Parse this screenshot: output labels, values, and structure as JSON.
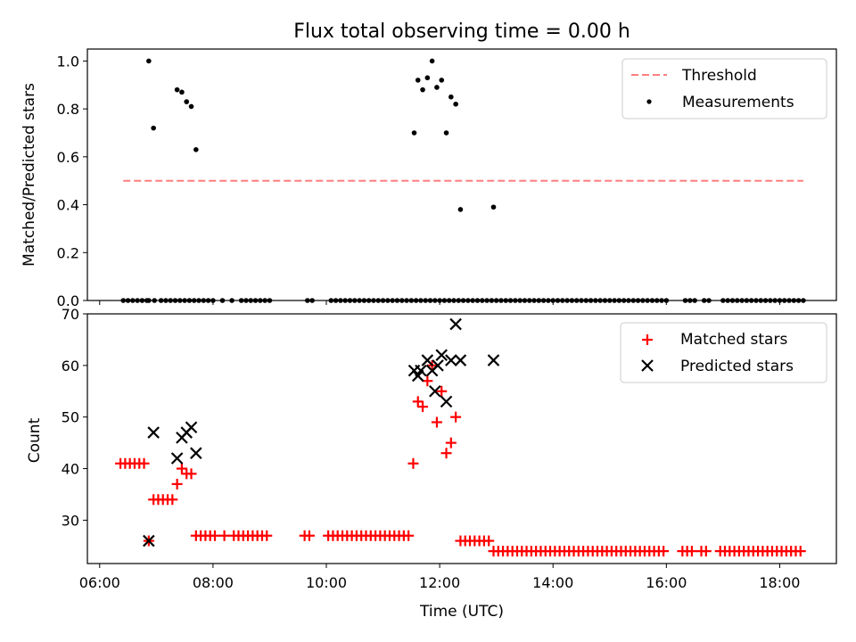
{
  "figure": {
    "title": "Flux total observing time = 0.00 h"
  },
  "chart_data": [
    {
      "type": "scatter",
      "panel": "top",
      "title": "Flux total observing time = 0.00 h",
      "xlabel": "",
      "ylabel": "Matched/Predicted stars",
      "xlim": [
        "05:47",
        "19:00"
      ],
      "ylim": [
        0,
        1.05
      ],
      "yticks": [
        0.0,
        0.2,
        0.4,
        0.6,
        0.8,
        1.0
      ],
      "ytick_labels": [
        "0.0",
        "0.2",
        "0.4",
        "0.6",
        "0.8",
        "1.0"
      ],
      "grid": false,
      "legend_position": "top-right",
      "threshold": {
        "name": "Threshold",
        "value": 0.5,
        "x_range": [
          "06:25",
          "18:25"
        ],
        "color": "#ff7f7f"
      },
      "series": [
        {
          "name": "Measurements",
          "color": "#000000",
          "marker": "dot",
          "x": [
            "06:25",
            "06:30",
            "06:35",
            "06:40",
            "06:45",
            "06:50",
            "06:52",
            "06:58",
            "07:05",
            "07:10",
            "07:15",
            "07:20",
            "07:25",
            "07:30",
            "07:35",
            "07:40",
            "07:45",
            "07:50",
            "07:55",
            "08:00",
            "08:10",
            "08:20",
            "08:30",
            "08:35",
            "08:40",
            "08:45",
            "08:50",
            "08:55",
            "09:00",
            "09:40",
            "09:45",
            "10:05",
            "10:10",
            "10:15",
            "10:20",
            "10:25",
            "10:30",
            "10:35",
            "10:40",
            "10:45",
            "10:50",
            "10:55",
            "11:00",
            "11:05",
            "11:10",
            "11:15",
            "11:20",
            "11:25",
            "11:30",
            "11:35",
            "11:40",
            "11:45",
            "11:50",
            "11:55",
            "12:00",
            "12:05",
            "12:10",
            "12:15",
            "12:20",
            "12:25",
            "12:30",
            "12:35",
            "12:40",
            "12:45",
            "12:50",
            "12:55",
            "13:00",
            "13:05",
            "13:10",
            "13:15",
            "13:20",
            "13:25",
            "13:30",
            "13:35",
            "13:40",
            "13:45",
            "13:50",
            "13:55",
            "14:00",
            "14:05",
            "14:10",
            "14:15",
            "14:20",
            "14:25",
            "14:30",
            "14:35",
            "14:40",
            "14:45",
            "14:50",
            "14:55",
            "15:00",
            "15:05",
            "15:10",
            "15:15",
            "15:20",
            "15:25",
            "15:30",
            "15:35",
            "15:40",
            "15:45",
            "15:50",
            "15:55",
            "16:00",
            "16:20",
            "16:25",
            "16:30",
            "16:40",
            "16:45",
            "17:00",
            "17:05",
            "17:10",
            "17:15",
            "17:20",
            "17:25",
            "17:30",
            "17:35",
            "17:40",
            "17:45",
            "17:50",
            "17:55",
            "18:00",
            "18:05",
            "18:10",
            "18:15",
            "18:20",
            "18:25",
            "06:52",
            "06:57",
            "07:22",
            "07:27",
            "07:32",
            "07:37",
            "07:42",
            "11:33",
            "11:37",
            "11:42",
            "11:47",
            "11:52",
            "11:57",
            "12:02",
            "12:07",
            "12:12",
            "12:17",
            "12:22",
            "12:57"
          ],
          "y": [
            0,
            0,
            0,
            0,
            0,
            0,
            0,
            0,
            0,
            0,
            0,
            0,
            0,
            0,
            0,
            0,
            0,
            0,
            0,
            0,
            0,
            0,
            0,
            0,
            0,
            0,
            0,
            0,
            0,
            0,
            0,
            0,
            0,
            0,
            0,
            0,
            0,
            0,
            0,
            0,
            0,
            0,
            0,
            0,
            0,
            0,
            0,
            0,
            0,
            0,
            0,
            0,
            0,
            0,
            0,
            0,
            0,
            0,
            0,
            0,
            0,
            0,
            0,
            0,
            0,
            0,
            0,
            0,
            0,
            0,
            0,
            0,
            0,
            0,
            0,
            0,
            0,
            0,
            0,
            0,
            0,
            0,
            0,
            0,
            0,
            0,
            0,
            0,
            0,
            0,
            0,
            0,
            0,
            0,
            0,
            0,
            0,
            0,
            0,
            0,
            0,
            0,
            0,
            0,
            0,
            0,
            0,
            0,
            0,
            0,
            0,
            0,
            0,
            0,
            0,
            0,
            0,
            0,
            0,
            0,
            0,
            0,
            0,
            0,
            0,
            0,
            1.0,
            0.72,
            0.88,
            0.87,
            0.83,
            0.81,
            0.63,
            0.7,
            0.92,
            0.88,
            0.93,
            1.0,
            0.89,
            0.92,
            0.7,
            0.85,
            0.82,
            0.38,
            0.39
          ]
        }
      ]
    },
    {
      "type": "scatter",
      "panel": "bottom",
      "title": "",
      "xlabel": "Time (UTC)",
      "ylabel": "Count",
      "xlim": [
        "05:47",
        "19:00"
      ],
      "ylim": [
        21.6,
        70
      ],
      "yticks": [
        30,
        40,
        50,
        60,
        70
      ],
      "ytick_labels": [
        "30",
        "40",
        "50",
        "60",
        "70"
      ],
      "xticks": [
        "06:00",
        "08:00",
        "10:00",
        "12:00",
        "14:00",
        "16:00",
        "18:00"
      ],
      "grid": false,
      "legend_position": "top-right",
      "series": [
        {
          "name": "Matched stars",
          "color": "#ff0000",
          "marker": "plus",
          "x": [
            "06:22",
            "06:27",
            "06:32",
            "06:37",
            "06:42",
            "06:47",
            "06:52",
            "06:57",
            "07:02",
            "07:07",
            "07:12",
            "07:17",
            "07:22",
            "07:27",
            "07:32",
            "07:37",
            "07:42",
            "07:47",
            "07:52",
            "07:57",
            "08:02",
            "08:12",
            "08:22",
            "08:27",
            "08:32",
            "08:37",
            "08:42",
            "08:47",
            "08:52",
            "08:57",
            "09:37",
            "09:42",
            "10:02",
            "10:07",
            "10:12",
            "10:17",
            "10:22",
            "10:27",
            "10:32",
            "10:37",
            "10:42",
            "10:47",
            "10:52",
            "10:57",
            "11:02",
            "11:07",
            "11:12",
            "11:17",
            "11:22",
            "11:27",
            "11:32",
            "11:37",
            "11:42",
            "11:47",
            "11:52",
            "11:57",
            "12:02",
            "12:07",
            "12:12",
            "12:17",
            "12:22",
            "12:27",
            "12:32",
            "12:37",
            "12:42",
            "12:47",
            "12:52",
            "12:57",
            "13:02",
            "13:07",
            "13:12",
            "13:17",
            "13:22",
            "13:27",
            "13:32",
            "13:37",
            "13:42",
            "13:47",
            "13:52",
            "13:57",
            "14:02",
            "14:07",
            "14:12",
            "14:17",
            "14:22",
            "14:27",
            "14:32",
            "14:37",
            "14:42",
            "14:47",
            "14:52",
            "14:57",
            "15:02",
            "15:07",
            "15:12",
            "15:17",
            "15:22",
            "15:27",
            "15:32",
            "15:37",
            "15:42",
            "15:47",
            "15:52",
            "15:57",
            "16:17",
            "16:22",
            "16:27",
            "16:37",
            "16:42",
            "16:57",
            "17:02",
            "17:07",
            "17:12",
            "17:17",
            "17:22",
            "17:27",
            "17:32",
            "17:37",
            "17:42",
            "17:47",
            "17:52",
            "17:57",
            "18:02",
            "18:07",
            "18:12",
            "18:17",
            "18:22"
          ],
          "y": [
            41,
            41,
            41,
            41,
            41,
            41,
            26,
            34,
            34,
            34,
            34,
            34,
            37,
            40,
            39,
            39,
            27,
            27,
            27,
            27,
            27,
            27,
            27,
            27,
            27,
            27,
            27,
            27,
            27,
            27,
            27,
            27,
            27,
            27,
            27,
            27,
            27,
            27,
            27,
            27,
            27,
            27,
            27,
            27,
            27,
            27,
            27,
            27,
            27,
            27,
            41,
            53,
            52,
            57,
            60,
            49,
            55,
            43,
            45,
            50,
            26,
            26,
            26,
            26,
            26,
            26,
            26,
            24,
            24,
            24,
            24,
            24,
            24,
            24,
            24,
            24,
            24,
            24,
            24,
            24,
            24,
            24,
            24,
            24,
            24,
            24,
            24,
            24,
            24,
            24,
            24,
            24,
            24,
            24,
            24,
            24,
            24,
            24,
            24,
            24,
            24,
            24,
            24,
            24,
            24,
            24,
            24,
            24,
            24,
            24,
            24,
            24,
            24,
            24,
            24,
            24,
            24,
            24,
            24,
            24,
            24,
            24,
            24,
            24,
            24,
            24,
            24
          ]
        },
        {
          "name": "Predicted stars",
          "color": "#000000",
          "marker": "x",
          "x": [
            "06:52",
            "06:57",
            "07:22",
            "07:27",
            "07:32",
            "07:37",
            "07:42",
            "11:33",
            "11:37",
            "11:40",
            "11:47",
            "11:52",
            "11:55",
            "11:58",
            "12:02",
            "12:07",
            "12:12",
            "12:17",
            "12:22",
            "12:57"
          ],
          "y": [
            26,
            47,
            42,
            46,
            47,
            48,
            43,
            59,
            58,
            59,
            61,
            59,
            55,
            60,
            62,
            53,
            61,
            68,
            61,
            61
          ]
        }
      ]
    }
  ]
}
